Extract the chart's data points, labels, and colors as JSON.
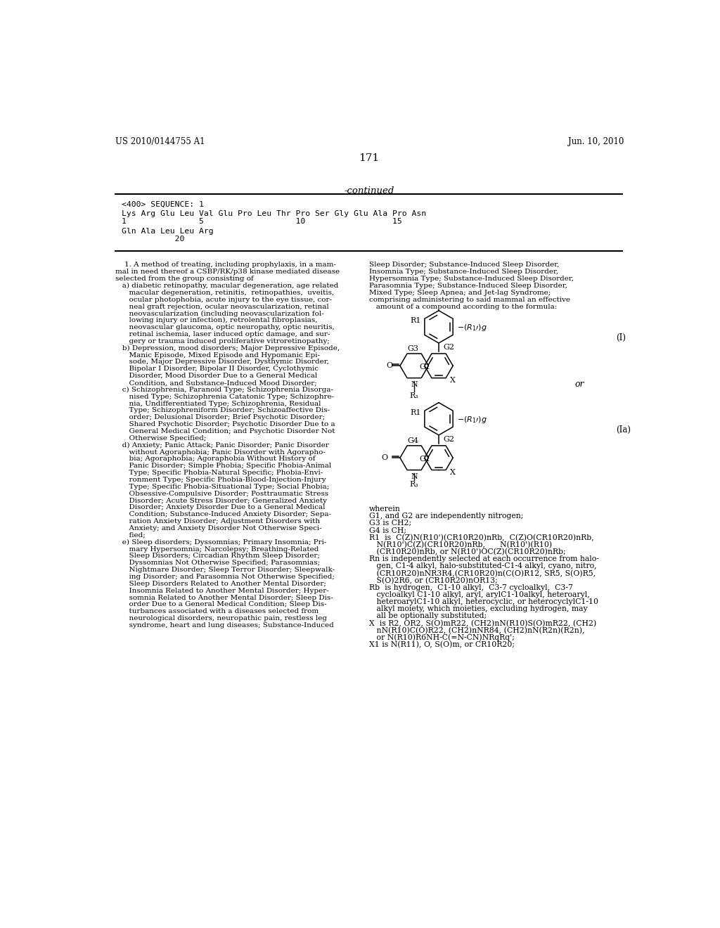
{
  "page_number": "171",
  "patent_number": "US 2010/0144755 A1",
  "patent_date": "Jun. 10, 2010",
  "continued_label": "-continued",
  "sequence_header": "<400> SEQUENCE: 1",
  "sequence_line1": "Lys Arg Glu Leu Val Glu Pro Leu Thr Pro Ser Gly Glu Ala Pro Asn",
  "sequence_nums1": "1               5                   10                  15",
  "sequence_line2": "Gln Ala Leu Leu Arg",
  "sequence_nums2": "           20",
  "left_col": [
    "    1. A method of treating, including prophylaxis, in a mam-",
    "mal in need thereof a CSBP/RK/p38 kinase mediated disease",
    "selected from the group consisting of",
    "   a) diabetic retinopathy, macular degeneration, age related",
    "      macular degeneration, retinitis,  retinopathies,  uveitis,",
    "      ocular photophobia, acute injury to the eye tissue, cor-",
    "      neal graft rejection, ocular neovascularization, retinal",
    "      neovascularization (including neovascularization fol-",
    "      lowing injury or infection), retrolental fibroplasias,",
    "      neovascular glaucoma, optic neuropathy, optic neuritis,",
    "      retinal ischemia, laser induced optic damage, and sur-",
    "      gery or trauma induced proliferative vitroretinopathy;",
    "   b) Depression, mood disorders; Major Depressive Episode,",
    "      Manic Episode, Mixed Episode and Hypomanic Epi-",
    "      sode, Major Depressive Disorder, Dysthymic Disorder,",
    "      Bipolar I Disorder, Bipolar II Disorder, Cyclothymic",
    "      Disorder, Mood Disorder Due to a General Medical",
    "      Condition, and Substance-Induced Mood Disorder;",
    "   c) Schizophrenia, Paranoid Type; Schizophrenia Disorga-",
    "      nised Type; Schizophrenia Catatonic Type; Schizophre-",
    "      nia, Undifferentiated Type; Schizophrenia, Residual",
    "      Type; Schizophreniform Disorder; Schizoaffective Dis-",
    "      order; Delusional Disorder; Brief Psychotic Disorder;",
    "      Shared Psychotic Disorder; Psychotic Disorder Due to a",
    "      General Medical Condition; and Psychotic Disorder Not",
    "      Otherwise Specified;",
    "   d) Anxiety; Panic Attack; Panic Disorder; Panic Disorder",
    "      without Agoraphobia; Panic Disorder with Agorapho-",
    "      bia; Agoraphobia; Agoraphobia Without History of",
    "      Panic Disorder; Simple Phobia; Specific Phobia-Animal",
    "      Type; Specific Phobia-Natural Specific; Phobia-Envi-",
    "      ronment Type; Specific Phobia-Blood-Injection-Injury",
    "      Type; Specific Phobia-Situational Type; Social Phobia;",
    "      Obsessive-Compulsive Disorder; Posttraumatic Stress",
    "      Disorder; Acute Stress Disorder; Generalized Anxiety",
    "      Disorder; Anxiety Disorder Due to a General Medical",
    "      Condition; Substance-Induced Anxiety Disorder; Sepa-",
    "      ration Anxiety Disorder; Adjustment Disorders with",
    "      Anxiety; and Anxiety Disorder Not Otherwise Speci-",
    "      fied;",
    "   e) Sleep disorders; Dyssomnias; Primary Insomnia; Pri-",
    "      mary Hypersomnia; Narcolepsy; Breathing-Related",
    "      Sleep Disorders; Circadian Rhythm Sleep Disorder;",
    "      Dyssomnias Not Otherwise Specified; Parasomnias;",
    "      Nightmare Disorder; Sleep Terror Disorder; Sleepwalk-",
    "      ing Disorder; and Parasomnia Not Otherwise Specified;",
    "      Sleep Disorders Related to Another Mental Disorder;",
    "      Insomnia Related to Another Mental Disorder; Hyper-",
    "      somnia Related to Another Mental Disorder; Sleep Dis-",
    "      order Due to a General Medical Condition; Sleep Dis-",
    "      turbances associated with a diseases selected from",
    "      neurological disorders, neuropathic pain, restless leg",
    "      syndrome, heart and lung diseases; Substance-Induced"
  ],
  "right_col_top": [
    "Sleep Disorder; Substance-Induced Sleep Disorder,",
    "Insomnia Type; Substance-Induced Sleep Disorder,",
    "Hypersomnia Type; Substance-Induced Sleep Disorder,",
    "Parasomnia Type; Substance-Induced Sleep Disorder,",
    "Mixed Type; Sleep Apnea; and Jet-lag Syndrome;",
    "comprising administering to said mammal an effective",
    "   amount of a compound according to the formula:"
  ],
  "wherein_lines": [
    "wherein",
    "G1, and G2 are independently nitrogen;",
    "G3 is CH2;",
    "G4 is CH;",
    "R1  is  C(Z)N(R10')(CR10R20)nRb,  C(Z)O(CR10R20)nRb,",
    "   N(R10')C(Z)(CR10R20)nRb,      N(R10')(R10)",
    "   (CR10R20)nRb, or N(R10')OC(Z)(CR10R20)nRb;",
    "Rn is independently selected at each occurrence from halo-",
    "   gen, C1-4 alkyl, halo-substituted-C1-4 alkyl, cyano, nitro,",
    "   (CR10R20)nNR3R4,(CR10R20)n(C(O)R12, SR5, S(O)R5,",
    "   S(O)2R6, or (CR10R20)nOR13;",
    "Rb  is hydrogen,  C1-10 alkyl,  C3-7 cycloalkyl,  C3-7",
    "   cycloalkyl C1-10 alkyl, aryl, arylC1-10alkyl, heteroaryl,",
    "   heteroarylC1-10 alkyl, heterocyclic, or heterocyclylC1-10",
    "   alkyl moiety, which moieties, excluding hydrogen, may",
    "   all be optionally substituted;",
    "X  is R2, OR2, S(O)mR22, (CH2)nN(R10)S(O)mR22, (CH2)",
    "   nN(R10)C(O)R22, (CH2)nNR84, (CH2)nN(R2n)(R2n),",
    "   or N(R10)R6NH-C(=N-CN)NRqRq';",
    "X1 is N(R11), O, S(O)m, or CR10R20;"
  ]
}
